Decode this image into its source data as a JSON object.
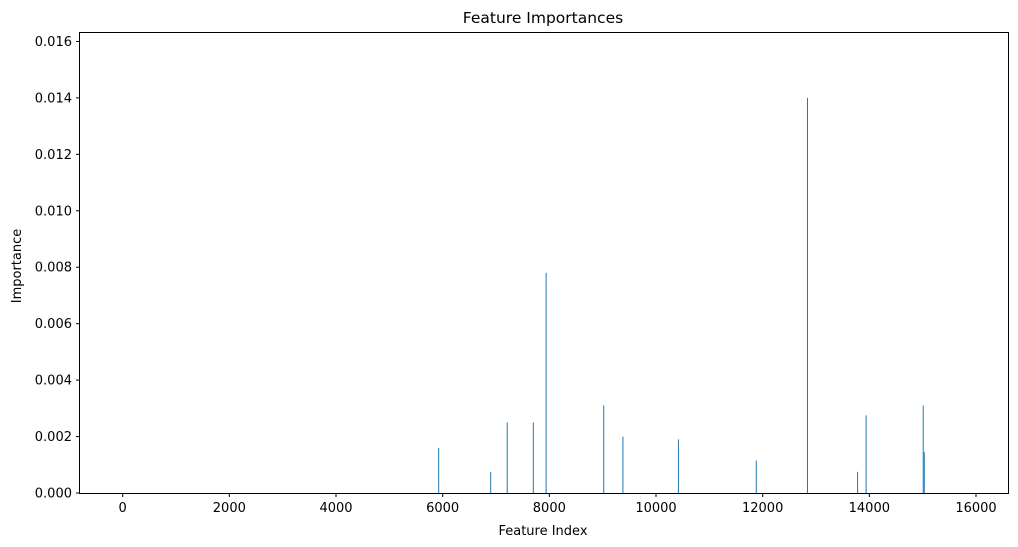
{
  "chart_data": {
    "type": "bar",
    "title": "Feature Importances",
    "xlabel": "Feature Index",
    "ylabel": "Importance",
    "xlim": [
      -800,
      16600
    ],
    "ylim": [
      0,
      0.0163
    ],
    "xticks": [
      0,
      2000,
      4000,
      6000,
      8000,
      10000,
      12000,
      14000,
      16000
    ],
    "xtick_labels": [
      "0",
      "2000",
      "4000",
      "6000",
      "8000",
      "10000",
      "12000",
      "14000",
      "16000"
    ],
    "yticks": [
      0,
      0.002,
      0.004,
      0.006,
      0.008,
      0.01,
      0.012,
      0.014,
      0.016
    ],
    "ytick_labels": [
      "0.000",
      "0.002",
      "0.004",
      "0.006",
      "0.008",
      "0.010",
      "0.012",
      "0.014",
      "0.016"
    ],
    "grid": false,
    "bar_color": "#1f77b4",
    "points": [
      {
        "x": 5925,
        "y": 0.0016
      },
      {
        "x": 6900,
        "y": 0.00075
      },
      {
        "x": 7210,
        "y": 0.0025
      },
      {
        "x": 7700,
        "y": 0.0025
      },
      {
        "x": 7940,
        "y": 0.0078
      },
      {
        "x": 9020,
        "y": 0.0031
      },
      {
        "x": 9380,
        "y": 0.002
      },
      {
        "x": 10420,
        "y": 0.0019
      },
      {
        "x": 11880,
        "y": 0.00115
      },
      {
        "x": 12840,
        "y": 0.014
      },
      {
        "x": 13780,
        "y": 0.00075
      },
      {
        "x": 13940,
        "y": 0.00275
      },
      {
        "x": 15010,
        "y": 0.0031
      },
      {
        "x": 15030,
        "y": 0.00145
      }
    ]
  }
}
